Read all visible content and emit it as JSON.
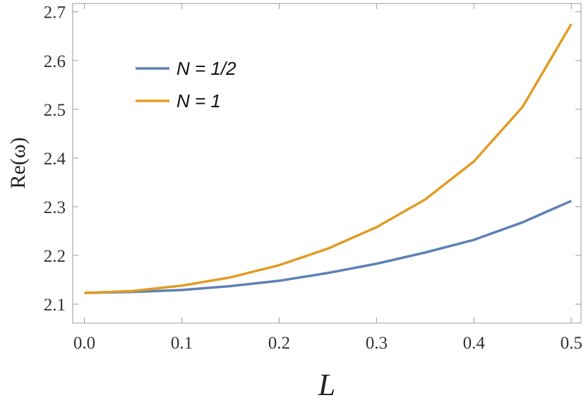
{
  "chart_data": {
    "type": "line",
    "x_label": "L",
    "y_label": "Re(ω)",
    "x": [
      0,
      0.05,
      0.1,
      0.15,
      0.2,
      0.25,
      0.3,
      0.35,
      0.4,
      0.45,
      0.5
    ],
    "series": [
      {
        "name": "N = 1/2",
        "color": "#5e81b5",
        "values": [
          2.123,
          2.125,
          2.129,
          2.137,
          2.148,
          2.164,
          2.183,
          2.206,
          2.232,
          2.268,
          2.312
        ]
      },
      {
        "name": "N = 1",
        "color": "#e19c24",
        "values": [
          2.123,
          2.127,
          2.138,
          2.155,
          2.18,
          2.214,
          2.258,
          2.315,
          2.393,
          2.505,
          2.675
        ]
      }
    ],
    "xlim": [
      -0.012,
      0.51
    ],
    "ylim": [
      2.061,
      2.717
    ],
    "xticks": [
      {
        "value": 0,
        "label": "0.0"
      },
      0.1,
      0.2,
      0.3,
      0.4,
      0.5
    ],
    "yticks": [
      2.1,
      2.2,
      2.3,
      2.4,
      2.5,
      2.6,
      2.7
    ],
    "legend": "upper left"
  }
}
